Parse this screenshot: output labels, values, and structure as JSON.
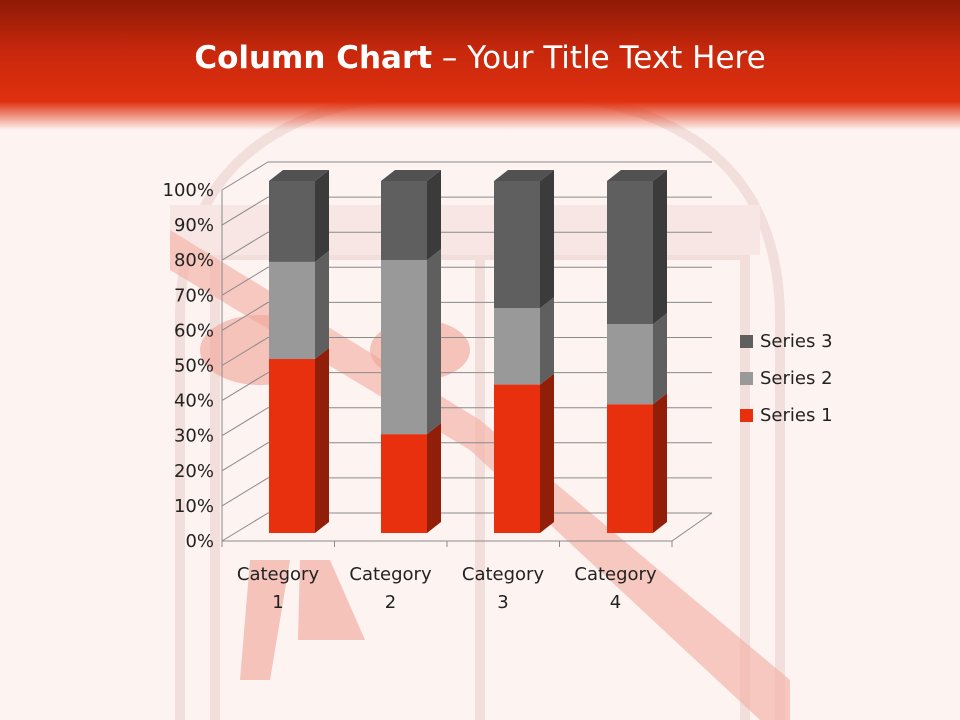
{
  "slide": {
    "title_bold": "Column Chart",
    "title_rest": " – Your Title Text Here"
  },
  "chart_data": {
    "type": "bar",
    "subtype": "3d-100%-stacked-column",
    "categories": [
      "Category 1",
      "Category 2",
      "Category 3",
      "Category 4"
    ],
    "category_label_lines": [
      [
        "Category",
        "1"
      ],
      [
        "Category",
        "2"
      ],
      [
        "Category",
        "3"
      ],
      [
        "Category",
        "4"
      ]
    ],
    "series": [
      {
        "name": "Series 1",
        "values": [
          4.3,
          2.5,
          3.5,
          4.5
        ],
        "color": "#e8300f"
      },
      {
        "name": "Series 2",
        "values": [
          2.4,
          4.4,
          1.8,
          2.8
        ],
        "color": "#999999"
      },
      {
        "name": "Series 3",
        "values": [
          2,
          2,
          3,
          5
        ],
        "color": "#5f5f5f"
      }
    ],
    "ylim": [
      0,
      100
    ],
    "yticks": [
      "0%",
      "10%",
      "20%",
      "30%",
      "40%",
      "50%",
      "60%",
      "70%",
      "80%",
      "90%",
      "100%"
    ],
    "grid": true,
    "legend": "right"
  }
}
